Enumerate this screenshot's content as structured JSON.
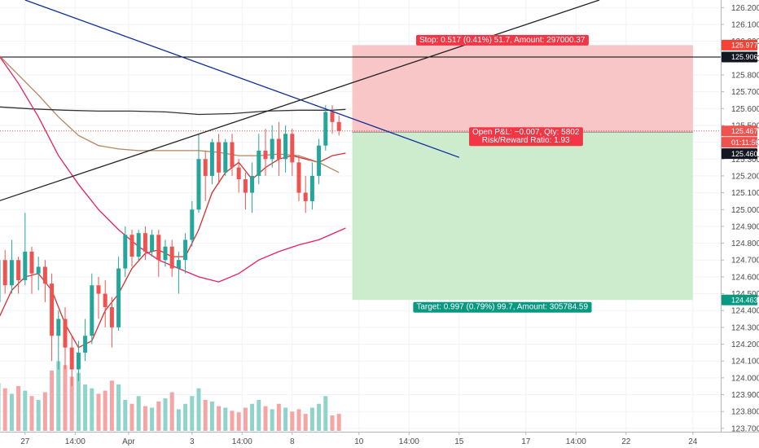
{
  "chart_data": {
    "type": "candlestick",
    "price_axis": {
      "ylim": [
        123.68,
        126.245
      ],
      "ticks": [
        "126.200",
        "126.100",
        "126.000",
        "125.900",
        "125.800",
        "125.700",
        "125.600",
        "125.500",
        "125.400",
        "125.300",
        "125.200",
        "125.100",
        "125.000",
        "124.900",
        "124.800",
        "124.700",
        "124.600",
        "124.500",
        "124.400",
        "124.300",
        "124.200",
        "124.100",
        "124.000",
        "123.900",
        "123.800",
        "123.700"
      ]
    },
    "time_axis": {
      "labels": [
        {
          "label": "27",
          "bar": 4
        },
        {
          "label": "14:00",
          "bar": 11.5
        },
        {
          "label": "Apr",
          "bar": 19.5
        },
        {
          "label": "3",
          "bar": 29
        },
        {
          "label": "14:00",
          "bar": 36.5
        },
        {
          "label": "8",
          "bar": 44
        },
        {
          "label": "10",
          "bar": 54
        },
        {
          "label": "14:00",
          "bar": 61.5
        },
        {
          "label": "15",
          "bar": 69
        },
        {
          "label": "17",
          "bar": 79
        },
        {
          "label": "14:00",
          "bar": 86.5
        },
        {
          "label": "22",
          "bar": 94
        },
        {
          "label": "24",
          "bar": 104
        }
      ]
    },
    "candles": [
      [
        124.45,
        124.7,
        124.72,
        124.38
      ],
      [
        124.7,
        124.55,
        124.76,
        124.5
      ],
      [
        124.55,
        124.7,
        124.82,
        124.5
      ],
      [
        124.7,
        124.58,
        124.72,
        124.5
      ],
      [
        124.58,
        124.75,
        124.98,
        124.55
      ],
      [
        124.75,
        124.62,
        124.78,
        124.5
      ],
      [
        124.62,
        124.66,
        124.72,
        124.52
      ],
      [
        124.66,
        124.56,
        124.7,
        124.45
      ],
      [
        124.56,
        124.25,
        124.62,
        124.1
      ],
      [
        124.25,
        124.35,
        124.4,
        124.05
      ],
      [
        124.35,
        124.18,
        124.42,
        124.05
      ],
      [
        124.18,
        124.05,
        124.25,
        123.95
      ],
      [
        124.05,
        124.15,
        124.22,
        123.98
      ],
      [
        124.15,
        124.25,
        124.35,
        124.1
      ],
      [
        124.25,
        124.55,
        124.62,
        124.2
      ],
      [
        124.55,
        124.5,
        124.6,
        124.35
      ],
      [
        124.5,
        124.42,
        124.58,
        124.3
      ],
      [
        124.42,
        124.3,
        124.48,
        124.18
      ],
      [
        124.3,
        124.65,
        124.72,
        124.28
      ],
      [
        124.65,
        124.85,
        124.9,
        124.6
      ],
      [
        124.85,
        124.72,
        124.88,
        124.66
      ],
      [
        124.72,
        124.86,
        124.88,
        124.7
      ],
      [
        124.86,
        124.75,
        124.9,
        124.7
      ],
      [
        124.75,
        124.85,
        124.88,
        124.72
      ],
      [
        124.85,
        124.7,
        124.88,
        124.6
      ],
      [
        124.7,
        124.78,
        124.82,
        124.66
      ],
      [
        124.78,
        124.65,
        124.82,
        124.6
      ],
      [
        124.65,
        124.7,
        124.75,
        124.5
      ],
      [
        124.7,
        124.82,
        124.86,
        124.62
      ],
      [
        124.82,
        125.0,
        125.05,
        124.78
      ],
      [
        125.0,
        125.3,
        125.45,
        124.98
      ],
      [
        125.3,
        125.2,
        125.35,
        125.05
      ],
      [
        125.2,
        125.4,
        125.42,
        125.15
      ],
      [
        125.4,
        125.22,
        125.45,
        125.15
      ],
      [
        125.22,
        125.4,
        125.42,
        125.2
      ],
      [
        125.4,
        125.25,
        125.45,
        125.2
      ],
      [
        125.25,
        125.18,
        125.3,
        125.1
      ],
      [
        125.18,
        125.1,
        125.22,
        125.0
      ],
      [
        125.1,
        125.2,
        125.28,
        124.98
      ],
      [
        125.2,
        125.35,
        125.45,
        125.15
      ],
      [
        125.35,
        125.3,
        125.48,
        125.2
      ],
      [
        125.3,
        125.42,
        125.5,
        125.25
      ],
      [
        125.42,
        125.3,
        125.52,
        125.2
      ],
      [
        125.3,
        125.45,
        125.5,
        125.22
      ],
      [
        125.45,
        125.28,
        125.48,
        125.2
      ],
      [
        125.28,
        125.1,
        125.32,
        125.05
      ],
      [
        125.1,
        125.05,
        125.2,
        124.98
      ],
      [
        125.05,
        125.2,
        125.28,
        125.0
      ],
      [
        125.2,
        125.38,
        125.42,
        125.15
      ],
      [
        125.38,
        125.58,
        125.62,
        125.35
      ],
      [
        125.58,
        125.52,
        125.62,
        125.45
      ],
      [
        125.52,
        125.467,
        125.56,
        125.44
      ]
    ],
    "volumes": [
      0.62,
      0.55,
      0.48,
      0.58,
      0.52,
      0.45,
      0.4,
      0.5,
      0.78,
      0.9,
      0.85,
      0.7,
      0.75,
      0.6,
      0.55,
      0.48,
      0.52,
      0.65,
      0.6,
      0.4,
      0.35,
      0.45,
      0.32,
      0.3,
      0.38,
      0.42,
      0.5,
      0.28,
      0.35,
      0.45,
      0.55,
      0.4,
      0.38,
      0.32,
      0.3,
      0.26,
      0.24,
      0.3,
      0.35,
      0.4,
      0.32,
      0.28,
      0.35,
      0.3,
      0.25,
      0.28,
      0.22,
      0.3,
      0.35,
      0.45,
      0.2,
      0.22
    ],
    "moving_averages": [
      {
        "color": "#d32f2f",
        "points": [
          [
            0,
            124.35
          ],
          [
            2,
            124.52
          ],
          [
            4,
            124.6
          ],
          [
            6,
            124.62
          ],
          [
            8,
            124.52
          ],
          [
            10,
            124.32
          ],
          [
            12,
            124.18
          ],
          [
            14,
            124.22
          ],
          [
            16,
            124.4
          ],
          [
            18,
            124.5
          ],
          [
            20,
            124.65
          ],
          [
            22,
            124.74
          ],
          [
            24,
            124.76
          ],
          [
            26,
            124.72
          ],
          [
            28,
            124.72
          ],
          [
            30,
            124.88
          ],
          [
            32,
            125.1
          ],
          [
            34,
            125.22
          ],
          [
            36,
            125.28
          ],
          [
            38,
            125.18
          ],
          [
            40,
            125.25
          ],
          [
            42,
            125.3
          ],
          [
            44,
            125.32
          ],
          [
            46,
            125.3
          ],
          [
            48,
            125.28
          ],
          [
            50,
            125.32
          ],
          [
            52,
            125.335
          ]
        ]
      },
      {
        "color": "#b7845c",
        "points": [
          [
            0,
            125.92
          ],
          [
            3,
            125.8
          ],
          [
            6,
            125.68
          ],
          [
            9,
            125.55
          ],
          [
            12,
            125.44
          ],
          [
            15,
            125.38
          ],
          [
            18,
            125.36
          ],
          [
            21,
            125.35
          ],
          [
            24,
            125.35
          ],
          [
            27,
            125.35
          ],
          [
            30,
            125.35
          ],
          [
            33,
            125.34
          ],
          [
            36,
            125.32
          ],
          [
            39,
            125.32
          ],
          [
            42,
            125.33
          ],
          [
            45,
            125.32
          ],
          [
            48,
            125.28
          ],
          [
            51,
            125.22
          ]
        ]
      },
      {
        "color": "#333333",
        "points": [
          [
            0,
            125.61
          ],
          [
            5,
            125.598
          ],
          [
            10,
            125.59
          ],
          [
            15,
            125.585
          ],
          [
            20,
            125.585
          ],
          [
            25,
            125.58
          ],
          [
            30,
            125.565
          ],
          [
            35,
            125.57
          ],
          [
            40,
            125.585
          ],
          [
            45,
            125.59
          ],
          [
            50,
            125.59
          ],
          [
            52,
            125.595
          ]
        ]
      },
      {
        "color": "#e91e63",
        "points": [
          [
            0,
            125.92
          ],
          [
            3,
            125.75
          ],
          [
            6,
            125.55
          ],
          [
            9,
            125.32
          ],
          [
            12,
            125.15
          ],
          [
            15,
            125.0
          ],
          [
            18,
            124.88
          ],
          [
            21,
            124.78
          ],
          [
            24,
            124.7
          ],
          [
            27,
            124.65
          ],
          [
            30,
            124.6
          ],
          [
            33,
            124.57
          ],
          [
            36,
            124.62
          ],
          [
            39,
            124.7
          ],
          [
            42,
            124.75
          ],
          [
            45,
            124.79
          ],
          [
            48,
            124.82
          ],
          [
            52,
            124.89
          ]
        ]
      }
    ],
    "trendlines": [
      {
        "color": "#0d2c9e",
        "from": [
          4,
          126.245
        ],
        "to": [
          69,
          125.31
        ]
      },
      {
        "color": "#222222",
        "from": [
          0,
          125.05
        ],
        "to": [
          90,
          126.245
        ]
      }
    ],
    "horizontal_line": {
      "price": 125.906,
      "color": "#000000",
      "label": "125.906"
    },
    "position": {
      "start_bar": 53,
      "end_bar": 104,
      "entry": 125.46,
      "stop": 125.977,
      "target": 124.463,
      "stop_label": "Stop: 0.517 (0.41%) 51.7, Amount: 297000.37",
      "target_label": "Target: 0.997 (0.79%) 99.7, Amount: 305784.59",
      "pnl_label": "Open P&L: −0.007, Qty: 5802",
      "rr_label": "Risk/Reward Ratio: 1.93"
    },
    "price_tags": [
      {
        "label": "125.977",
        "price": 125.977,
        "bg": "#f44336",
        "fg": "#ffffff"
      },
      {
        "label": "125.906",
        "price": 125.906,
        "bg": "#131722",
        "fg": "#ffffff"
      },
      {
        "label": "125.467",
        "price": 125.467,
        "bg": "#ef5350",
        "fg": "#ffffff"
      },
      {
        "label": "01:11:56",
        "price": 125.4,
        "bg": "#ef5350",
        "fg": "#ffffff"
      },
      {
        "label": "125.460",
        "price": 125.332,
        "bg": "#131722",
        "fg": "#ffffff"
      },
      {
        "label": "124.463",
        "price": 124.463,
        "bg": "#089981",
        "fg": "#ffffff"
      }
    ],
    "colors": {
      "up": "#26a69a",
      "down": "#ef5350",
      "up_volume": "#8fd3cb",
      "down_volume": "#f6a5a5",
      "stop_zone": "#f8c6c6",
      "target_zone": "#cdeccd",
      "entry_line": "#ef5350"
    }
  }
}
